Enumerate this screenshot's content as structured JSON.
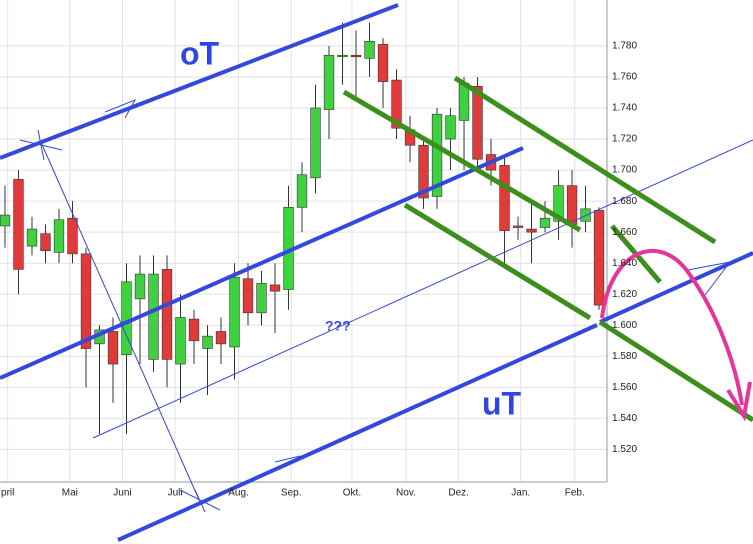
{
  "chart_data": {
    "type": "candlestick",
    "categories": [
      null,
      null,
      null,
      null,
      null,
      null,
      null,
      null,
      null,
      null,
      null,
      null,
      null,
      null,
      null,
      null,
      null,
      null,
      null,
      null,
      null,
      null,
      null,
      null,
      null,
      null,
      null,
      null,
      null,
      null,
      null,
      null,
      null,
      null,
      null,
      null,
      null,
      null,
      null,
      null,
      null,
      null,
      null,
      null,
      null
    ],
    "open": [
      1.664,
      1.694,
      1.651,
      1.659,
      1.647,
      1.669,
      1.646,
      1.588,
      1.596,
      1.581,
      1.617,
      1.578,
      1.636,
      1.575,
      1.604,
      1.585,
      1.596,
      1.586,
      1.63,
      1.608,
      1.626,
      1.623,
      1.676,
      1.695,
      1.739,
      1.774,
      1.774,
      1.772,
      1.781,
      1.758,
      1.726,
      1.716,
      1.683,
      1.72,
      1.732,
      1.754,
      1.71,
      1.703,
      1.664,
      1.662,
      1.663,
      1.667,
      1.69,
      1.667,
      1.674
    ],
    "high": [
      1.69,
      1.7,
      1.67,
      1.665,
      1.675,
      1.68,
      1.65,
      1.6,
      1.605,
      1.64,
      1.645,
      1.645,
      1.645,
      1.62,
      1.61,
      1.6,
      1.605,
      1.64,
      1.64,
      1.635,
      1.64,
      1.69,
      1.705,
      1.755,
      1.78,
      1.795,
      1.79,
      1.795,
      1.785,
      1.765,
      1.735,
      1.72,
      1.74,
      1.74,
      1.76,
      1.76,
      1.72,
      1.71,
      1.67,
      1.68,
      1.68,
      1.7,
      1.7,
      1.69,
      1.676
    ],
    "low": [
      1.65,
      1.62,
      1.645,
      1.64,
      1.64,
      1.64,
      1.56,
      1.53,
      1.55,
      1.53,
      1.575,
      1.57,
      1.56,
      1.55,
      1.575,
      1.555,
      1.575,
      1.565,
      1.6,
      1.6,
      1.595,
      1.61,
      1.66,
      1.685,
      1.72,
      1.755,
      1.745,
      1.76,
      1.74,
      1.72,
      1.705,
      1.675,
      1.675,
      1.7,
      1.7,
      1.7,
      1.69,
      1.64,
      1.655,
      1.64,
      1.66,
      1.655,
      1.65,
      1.66,
      1.61
    ],
    "close": [
      1.671,
      1.636,
      1.662,
      1.648,
      1.668,
      1.646,
      1.585,
      1.597,
      1.575,
      1.628,
      1.633,
      1.633,
      1.578,
      1.605,
      1.59,
      1.593,
      1.588,
      1.631,
      1.608,
      1.627,
      1.622,
      1.676,
      1.697,
      1.74,
      1.774,
      1.774,
      1.773,
      1.783,
      1.757,
      1.727,
      1.716,
      1.682,
      1.736,
      1.735,
      1.756,
      1.707,
      1.7,
      1.661,
      1.663,
      1.66,
      1.669,
      1.69,
      1.665,
      1.675,
      1.613
    ],
    "up_color": "#3fd13f",
    "down_color": "#e03a3a",
    "xlim": [
      -0.37,
      44.59
    ],
    "xticks": [
      {
        "value": 0.2,
        "label": "pril"
      },
      {
        "value": 4.8,
        "label": "Mai"
      },
      {
        "value": 8.7,
        "label": "Juni"
      },
      {
        "value": 12.6,
        "label": "Juli"
      },
      {
        "value": 17.3,
        "label": "Aug."
      },
      {
        "value": 21.2,
        "label": "Sep."
      },
      {
        "value": 25.7,
        "label": "Okt."
      },
      {
        "value": 29.7,
        "label": "Nov."
      },
      {
        "value": 33.6,
        "label": "Dez."
      },
      {
        "value": 38.2,
        "label": "Jan."
      },
      {
        "value": 42.2,
        "label": "Feb."
      }
    ],
    "ylim": [
      1.499,
      1.8096
    ],
    "yticks": [
      {
        "value": 1.52,
        "label": "1.520"
      },
      {
        "value": 1.54,
        "label": "1.540"
      },
      {
        "value": 1.56,
        "label": "1.560"
      },
      {
        "value": 1.58,
        "label": "1.580"
      },
      {
        "value": 1.6,
        "label": "1.600"
      },
      {
        "value": 1.62,
        "label": "1.620"
      },
      {
        "value": 1.64,
        "label": "1.640"
      },
      {
        "value": 1.66,
        "label": "1.660"
      },
      {
        "value": 1.68,
        "label": "1.680"
      },
      {
        "value": 1.7,
        "label": "1.700"
      },
      {
        "value": 1.72,
        "label": "1.720"
      },
      {
        "value": 1.74,
        "label": "1.740"
      },
      {
        "value": 1.76,
        "label": "1.760"
      },
      {
        "value": 1.78,
        "label": "1.780"
      }
    ],
    "grid": true,
    "annotations": [
      "oT",
      "uT",
      "???"
    ]
  }
}
